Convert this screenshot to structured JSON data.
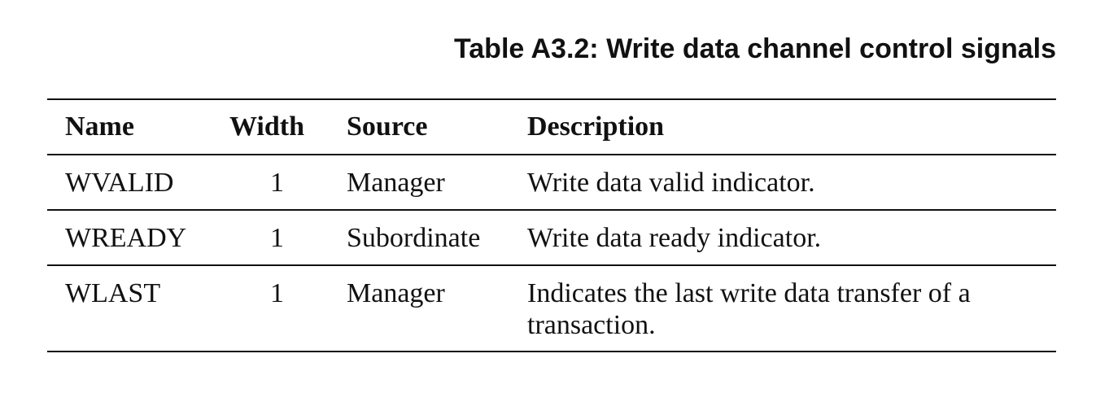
{
  "caption": "Table A3.2: Write data channel control signals",
  "table": {
    "headers": [
      "Name",
      "Width",
      "Source",
      "Description"
    ],
    "rows": [
      {
        "name": "WVALID",
        "width": "1",
        "source": "Manager",
        "description": "Write data valid indicator."
      },
      {
        "name": "WREADY",
        "width": "1",
        "source": "Subordinate",
        "description": "Write data ready indicator."
      },
      {
        "name": "WLAST",
        "width": "1",
        "source": "Manager",
        "description": "Indicates the last write data transfer of a transaction."
      }
    ]
  }
}
